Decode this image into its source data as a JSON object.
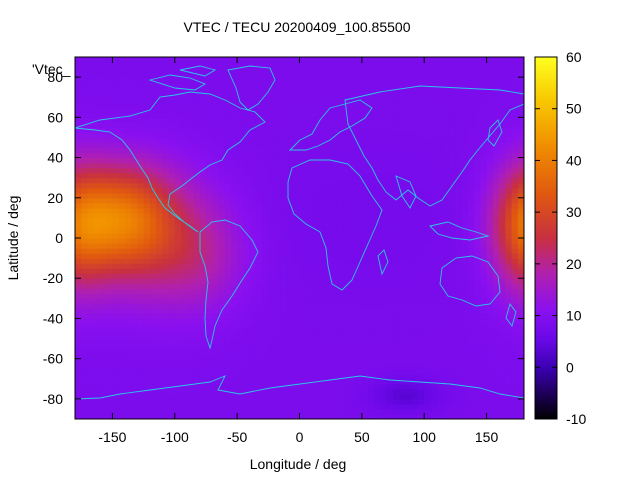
{
  "chart_data": {
    "type": "heatmap",
    "title": "VTEC / TECU 20200409_100.85500",
    "xlabel": "Longitude / deg",
    "ylabel": "Latitude / deg",
    "legend_label": "'Vtec_",
    "xlim": [
      -180,
      180
    ],
    "ylim": [
      -90,
      90
    ],
    "x_ticks": [
      -150,
      -100,
      -50,
      0,
      50,
      100,
      150
    ],
    "y_ticks": [
      -80,
      -60,
      -40,
      -20,
      0,
      20,
      40,
      60,
      80
    ],
    "y_tick_labels": [
      "-80",
      "-60",
      "-40",
      "-20",
      "0",
      "20",
      "40",
      "60",
      "80"
    ],
    "colorbar": {
      "range": [
        -10,
        60
      ],
      "ticks": [
        -10,
        0,
        10,
        20,
        30,
        40,
        50,
        60
      ],
      "palette": [
        "#000000",
        "#3a00b0",
        "#7a10f0",
        "#a020d0",
        "#c03060",
        "#e05010",
        "#f08000",
        "#f8c000",
        "#ffff20"
      ]
    },
    "field": {
      "background_value": 8.5,
      "features": [
        {
          "lon": -145,
          "lat": 10,
          "sigma_lon": 30,
          "sigma_lat": 18,
          "peak": 24
        },
        {
          "lon": -120,
          "lat": 0,
          "sigma_lon": 40,
          "sigma_lat": 24,
          "peak": 10
        },
        {
          "lon": -80,
          "lat": -10,
          "sigma_lon": 25,
          "sigma_lat": 18,
          "peak": 6
        },
        {
          "lon": 180,
          "lat": 5,
          "sigma_lon": 18,
          "sigma_lat": 22,
          "peak": 16
        },
        {
          "lon": 85,
          "lat": -78,
          "sigma_lon": 20,
          "sigma_lat": 6,
          "peak": -5
        },
        {
          "lon": 60,
          "lat": 10,
          "sigma_lon": 60,
          "sigma_lat": 25,
          "peak": -1
        }
      ]
    }
  }
}
